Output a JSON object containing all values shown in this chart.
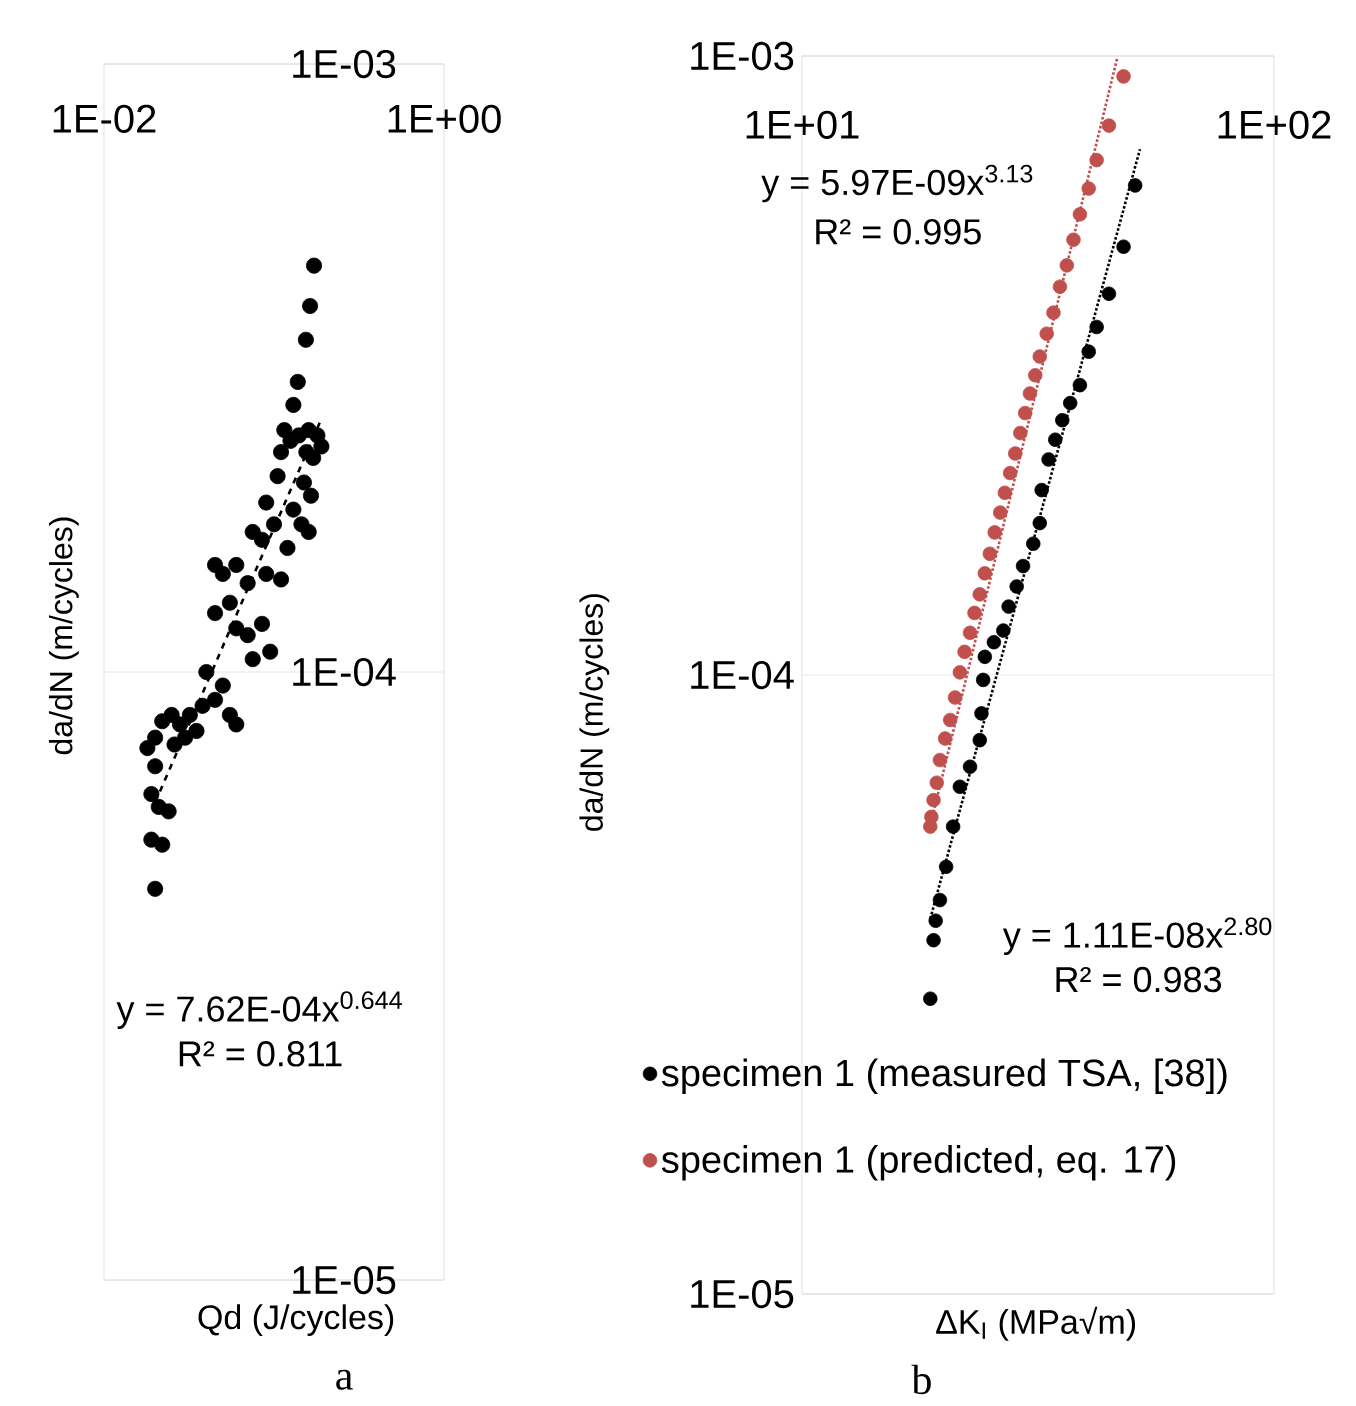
{
  "chart_data": [
    {
      "type": "scatter",
      "title": "a",
      "xlabel": "Qd (J/cycles)",
      "ylabel": "da/dN (m/cycles)",
      "log": "xy",
      "grid": "y",
      "marker": "circle",
      "xlim": [
        0.01,
        1
      ],
      "ylim": [
        1e-05,
        0.001
      ],
      "xticks": [
        {
          "value": 0.01,
          "label": "1E-02"
        },
        {
          "value": 1,
          "label": "1E+00"
        }
      ],
      "yticks": [
        {
          "value": 1e-05,
          "label": "1E-05"
        },
        {
          "value": 0.0001,
          "label": "1E-04"
        },
        {
          "value": 0.001,
          "label": "1E-03"
        }
      ],
      "annotations": [
        "y = 7.62E-04x$^{0.644}$",
        "R² = 0.811"
      ],
      "series": [
        {
          "color": "#000000",
          "x": [
            0.172,
            0.163,
            0.154,
            0.138,
            0.13,
            0.115,
            0.125,
            0.14,
            0.16,
            0.18,
            0.19,
            0.155,
            0.17,
            0.11,
            0.105,
            0.15,
            0.165,
            0.09,
            0.13,
            0.1,
            0.145,
            0.16,
            0.075,
            0.085,
            0.12,
            0.045,
            0.05,
            0.06,
            0.07,
            0.09,
            0.11,
            0.045,
            0.055,
            0.06,
            0.07,
            0.085,
            0.095,
            0.075,
            0.04,
            0.05,
            0.045,
            0.055,
            0.06,
            0.038,
            0.022,
            0.025,
            0.028,
            0.032,
            0.035,
            0.03,
            0.02,
            0.026,
            0.018,
            0.02,
            0.019,
            0.021,
            0.024,
            0.019,
            0.022,
            0.02
          ],
          "values": [
            0.000466,
            0.0004,
            0.000352,
            0.0003,
            0.000275,
            0.00025,
            0.00024,
            0.000245,
            0.00025,
            0.000245,
            0.000235,
            0.00023,
            0.000225,
            0.00023,
            0.00021,
            0.000205,
            0.000195,
            0.00019,
            0.000185,
            0.000175,
            0.000175,
            0.00017,
            0.00017,
            0.000165,
            0.00016,
            0.00015,
            0.000145,
            0.00015,
            0.00014,
            0.000145,
            0.000142,
            0.000125,
            0.00013,
            0.000118,
            0.000115,
            0.00012,
            0.000108,
            0.000105,
            0.0001,
            9.5e-05,
            9e-05,
            8.5e-05,
            8.2e-05,
            8.8e-05,
            8.3e-05,
            8.5e-05,
            8.2e-05,
            8.5e-05,
            8e-05,
            7.8e-05,
            7.8e-05,
            7.6e-05,
            7.5e-05,
            7e-05,
            6.3e-05,
            6e-05,
            5.9e-05,
            5.3e-05,
            5.2e-05,
            4.4e-05
          ]
        },
        {
          "type": "line",
          "color": "#000000",
          "marker": "none",
          "line_style": "dashed",
          "x": [
            0.02,
            0.19
          ],
          "values": [
            6.1e-05,
            0.000261
          ]
        }
      ]
    },
    {
      "type": "scatter",
      "title": "b",
      "xlabel": "ΔK$_{I}$ (MPa√m)",
      "ylabel": "da/dN (m/cycles)",
      "log": "xy",
      "grid": "y",
      "marker": "circle",
      "legend": "bottom left",
      "xlim": [
        10,
        100
      ],
      "ylim": [
        1e-05,
        0.001
      ],
      "xticks": [
        {
          "value": 10,
          "label": "1E+01"
        },
        {
          "value": 100,
          "label": "1E+02"
        }
      ],
      "yticks": [
        {
          "value": 1e-05,
          "label": "1E-05"
        },
        {
          "value": 0.0001,
          "label": "1E-04"
        },
        {
          "value": 0.001,
          "label": "1E-03"
        }
      ],
      "annotations": [
        "y = 5.97E-09x$^{3.13}$",
        "R² = 0.995",
        "y = 1.11E-08x$^{2.80}$",
        "R² = 0.983"
      ],
      "series": [
        {
          "name": "specimen 1 (measured TSA, [38])",
          "color": "#000000",
          "x": [
            50.8,
            48.0,
            44.7,
            42.1,
            40.5,
            38.8,
            37.0,
            35.6,
            34.4,
            33.3,
            32.2,
            31.9,
            30.9,
            29.4,
            28.5,
            27.4,
            26.7,
            25.5,
            24.4,
            24.2,
            24.0,
            23.8,
            22.7,
            21.6,
            20.9,
            20.2,
            19.6,
            19.2,
            19.0,
            18.7
          ],
          "values": [
            0.000618,
            0.000492,
            0.000413,
            0.000365,
            0.000333,
            0.000294,
            0.000275,
            0.000258,
            0.00024,
            0.000223,
            0.000199,
            0.000176,
            0.000163,
            0.00015,
            0.000139,
            0.000129,
            0.000118,
            0.000113,
            0.000107,
            9.82e-05,
            8.67e-05,
            7.85e-05,
            7.11e-05,
            6.6e-05,
            5.69e-05,
            4.9e-05,
            4.33e-05,
            4.01e-05,
            3.73e-05,
            3e-05
          ]
        },
        {
          "name": "specimen 1 (predicted, eq. 17)",
          "color": "#c0504d",
          "x": [
            48.0,
            44.7,
            42.1,
            40.5,
            38.8,
            37.6,
            36.4,
            35.2,
            34.1,
            33.0,
            31.9,
            31.2,
            30.4,
            29.7,
            29.0,
            28.3,
            27.6,
            26.9,
            26.3,
            25.6,
            25.0,
            24.4,
            23.8,
            23.2,
            22.7,
            22.1,
            21.6,
            21.1,
            20.6,
            20.1,
            19.6,
            19.3,
            19.0,
            18.8,
            18.7
          ],
          "values": [
            0.000927,
            0.000772,
            0.000679,
            0.000611,
            0.000555,
            0.000505,
            0.000459,
            0.000424,
            0.000385,
            0.000356,
            0.000327,
            0.000305,
            0.000285,
            0.000265,
            0.000246,
            0.000228,
            0.000212,
            0.000197,
            0.000183,
            0.00017,
            0.000157,
            0.000146,
            0.000135,
            0.000126,
            0.000117,
            0.000109,
            0.000101,
            9.2e-05,
            8.46e-05,
            7.9e-05,
            7.29e-05,
            6.7e-05,
            6.28e-05,
            5.9e-05,
            5.69e-05
          ]
        },
        {
          "type": "line",
          "color": "#c0504d",
          "marker": "none",
          "line_style": "dotted",
          "x": [
            18.7,
            46.5
          ],
          "values": [
            5.71e-05,
            0.00099
          ]
        },
        {
          "type": "line",
          "color": "#000000",
          "marker": "none",
          "line_style": "dotted",
          "x": [
            18.7,
            52
          ],
          "values": [
            4.04e-05,
            0.000707
          ]
        }
      ]
    }
  ]
}
